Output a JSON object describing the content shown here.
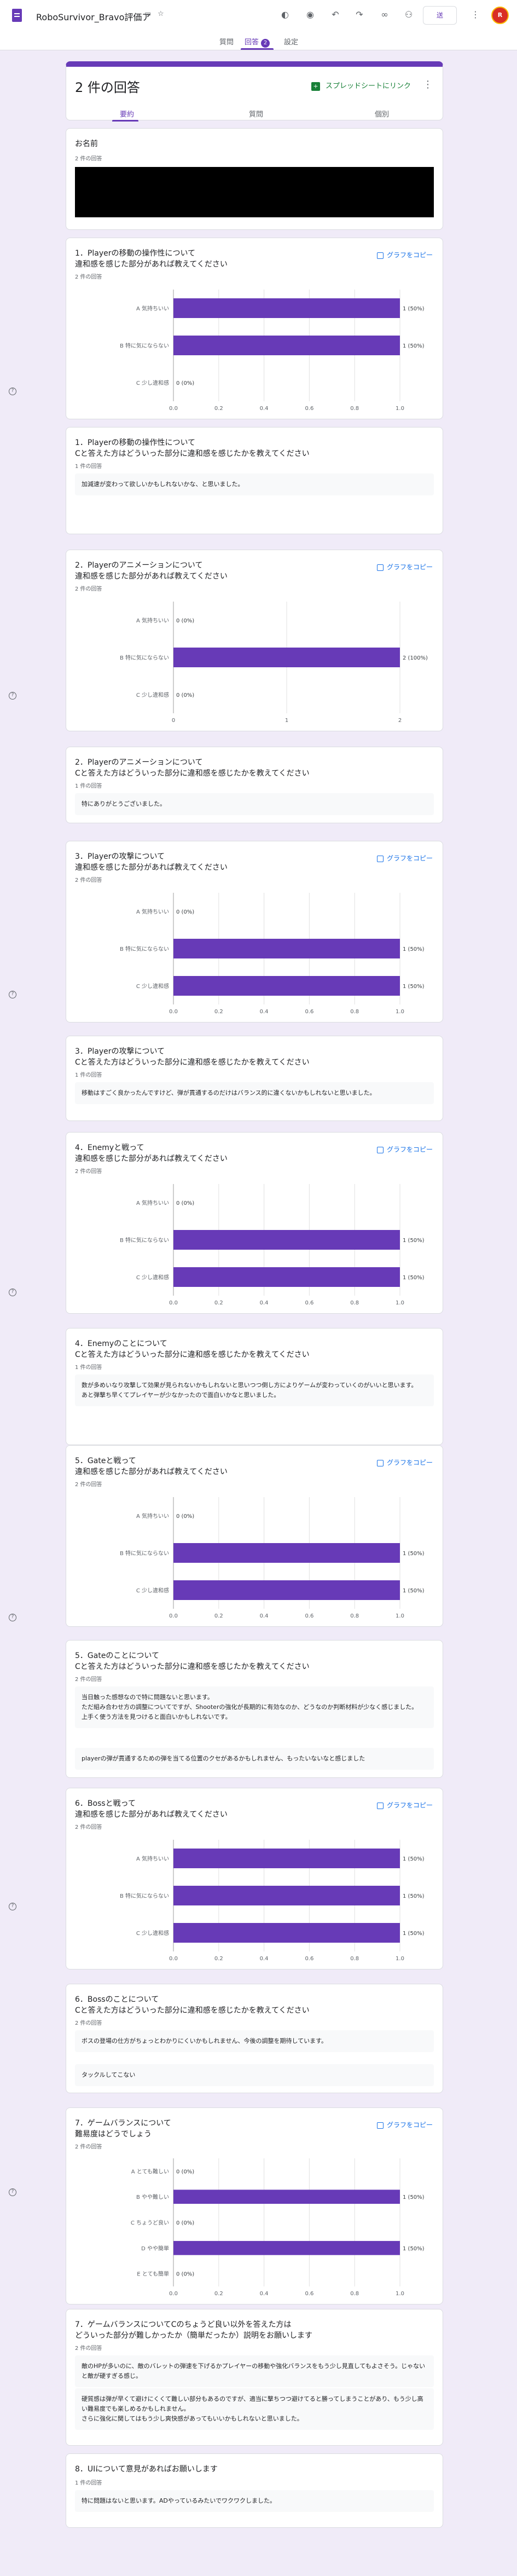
{
  "app": {
    "title": "RoboSurvivor_Bravo評価ア",
    "title_icons": [
      "folder-move-icon",
      "star-icon"
    ],
    "toolbar_icons": [
      "palette-icon",
      "preview-icon",
      "undo-icon",
      "redo-icon",
      "link-icon",
      "add-person-icon"
    ],
    "send_label": "送",
    "more_icon": "kebab-icon",
    "avatar_letter": "R"
  },
  "nav": {
    "tabs": [
      "質問",
      "回答",
      "設定"
    ],
    "active": 1,
    "badge": "2"
  },
  "summary": {
    "count_label": "2 件の回答",
    "sheet_link": "スプレッドシートにリンク",
    "sheet_icon": "spreadsheet-icon",
    "subtabs": [
      "要約",
      "質問",
      "個別"
    ],
    "active_subtab": 0
  },
  "common": {
    "copy_graph": "グラフをコピー",
    "copy_icon": "copy-icon",
    "help_icon": "help-icon"
  },
  "cards": [
    {
      "kind": "redacted",
      "title": "お名前",
      "count": "2 件の回答"
    },
    {
      "kind": "chart",
      "title": "1．Playerの移動の操作性について\n違和感を感じた部分があれば教えてください",
      "count": "2 件の回答",
      "chart": 0
    },
    {
      "kind": "text",
      "title": "1．Playerの移動の操作性について\nCと答えた方はどういった部分に違和感を感じたかを教えてください",
      "count": "1 件の回答",
      "responses": [
        "加減速が変わって欲しいかもしれないかな、と思いました。"
      ]
    },
    {
      "kind": "chart",
      "title": "2．Playerのアニメーションについて\n違和感を感じた部分があれば教えてください",
      "count": "2 件の回答",
      "chart": 1
    },
    {
      "kind": "text",
      "title": "2．Playerのアニメーションについて\nCと答えた方はどういった部分に違和感を感じたかを教えてください",
      "count": "1 件の回答",
      "responses": [
        "特にありがとうございました。"
      ]
    },
    {
      "kind": "chart",
      "title": "3．Playerの攻撃について\n違和感を感じた部分があれば教えてください",
      "count": "2 件の回答",
      "chart": 2
    },
    {
      "kind": "text",
      "title": "3．Playerの攻撃について\nCと答えた方はどういった部分に違和感を感じたかを教えてください",
      "count": "1 件の回答",
      "responses": [
        "移動はすごく良かったんですけど、弾が貫通するのだけはバランス的に違くないかもしれないと思いました。"
      ]
    },
    {
      "kind": "chart",
      "title": "4．Enemyと戦って\n違和感を感じた部分があれば教えてください",
      "count": "2 件の回答",
      "chart": 3
    },
    {
      "kind": "text",
      "title": "4．Enemyのことについて\nCと答えた方はどういった部分に違和感を感じたかを教えてください",
      "count": "1 件の回答",
      "responses": [
        "数が多めいなり攻撃して効果が見られないかもしれないと思いつつ倒し方によりゲームが変わっていくのがいいと思います。\nあと弾撃ち早くてプレイヤーが少なかったので面白いかなと思いました。"
      ]
    },
    {
      "kind": "chart",
      "title": "5．Gateと戦って\n違和感を感じた部分があれば教えてください",
      "count": "2 件の回答",
      "chart": 4
    },
    {
      "kind": "text",
      "title": "5．Gateのことについて\nCと答えた方はどういった部分に違和感を感じたかを教えてください",
      "count": "2 件の回答",
      "responses": [
        "当日触った感想なので特に問題ないと思います。\nただ組み合わせ方の調整についてですが、Shooterの強化が長期的に有効なのか、どうなのか判断材料が少なく感じました。\n上手く使う方法を見つけると面白いかもしれないです。",
        "playerの弾が貫通するための弾を当てる位置のクセがあるかもしれません、もったいないなと感じました"
      ]
    },
    {
      "kind": "chart",
      "title": "6．Bossと戦って\n違和感を感じた部分があれば教えてください",
      "count": "2 件の回答",
      "chart": 5
    },
    {
      "kind": "text",
      "title": "6．Bossのことについて\nCと答えた方はどういった部分に違和感を感じたかを教えてください",
      "count": "2 件の回答",
      "responses": [
        "ボスの登場の仕方がちょっとわかりにくいかもしれません、今後の調整を期待しています。",
        "タックルしてこない"
      ]
    },
    {
      "kind": "chart",
      "title": "7．ゲームバランスについて\n難易度はどうでしょう",
      "count": "2 件の回答",
      "chart": 6
    },
    {
      "kind": "text",
      "title": "7．ゲームバランスについてCのちょうど良い以外を答えた方は\nどういった部分が難しかったか（簡単だったか）説明をお願いします",
      "count": "2 件の回答",
      "responses": [
        "敵のHPが多いのに、敵のバレットの弾速を下げるかプレイヤーの移動や強化バランスをもう少し見直してもよさそう。じゃないと敵が硬すぎる感じ。",
        "硬質感は弾が早くて避けにくくて難しい部分もあるのですが、適当に撃ちつつ避けてると勝ってしまうことがあり、もう少し高い難易度でも楽しめるかもしれません。\nさらに強化に関してはもう少し爽快感があってもいいかもしれないと思いました。"
      ]
    },
    {
      "kind": "text",
      "title": "8．UIについて意見があればお願いします",
      "count": "1 件の回答",
      "responses": [
        "特に問題はないと思います。ADやっているみたいでワクワクしました。"
      ]
    }
  ],
  "chart_data": [
    {
      "type": "bar",
      "orientation": "horizontal",
      "categories": [
        "A 気持ちいい",
        "B 特に気にならない",
        "C 少し違和感"
      ],
      "values": [
        1,
        1,
        0
      ],
      "value_labels": [
        "1 (50%)",
        "1 (50%)",
        "0 (0%)"
      ],
      "xticks": [
        "0.0",
        "0.2",
        "0.4",
        "0.6",
        "0.8",
        "1.0"
      ],
      "xlim": [
        0,
        1
      ],
      "color": "#673ab7"
    },
    {
      "type": "bar",
      "orientation": "horizontal",
      "categories": [
        "A 気持ちいい",
        "B 特に気にならない",
        "C 少し違和感"
      ],
      "values": [
        0,
        2,
        0
      ],
      "value_labels": [
        "0 (0%)",
        "2 (100%)",
        "0 (0%)"
      ],
      "xticks": [
        "0",
        "1",
        "2"
      ],
      "xlim": [
        0,
        2
      ],
      "color": "#673ab7"
    },
    {
      "type": "bar",
      "orientation": "horizontal",
      "categories": [
        "A 気持ちいい",
        "B 特に気にならない",
        "C 少し違和感"
      ],
      "values": [
        0,
        1,
        1
      ],
      "value_labels": [
        "0 (0%)",
        "1 (50%)",
        "1 (50%)"
      ],
      "xticks": [
        "0.0",
        "0.2",
        "0.4",
        "0.6",
        "0.8",
        "1.0"
      ],
      "xlim": [
        0,
        1
      ],
      "color": "#673ab7"
    },
    {
      "type": "bar",
      "orientation": "horizontal",
      "categories": [
        "A 気持ちいい",
        "B 特に気にならない",
        "C 少し違和感"
      ],
      "values": [
        0,
        1,
        1
      ],
      "value_labels": [
        "0 (0%)",
        "1 (50%)",
        "1 (50%)"
      ],
      "xticks": [
        "0.0",
        "0.2",
        "0.4",
        "0.6",
        "0.8",
        "1.0"
      ],
      "xlim": [
        0,
        1
      ],
      "color": "#673ab7"
    },
    {
      "type": "bar",
      "orientation": "horizontal",
      "categories": [
        "A 気持ちいい",
        "B 特に気にならない",
        "C 少し違和感"
      ],
      "values": [
        0,
        1,
        1
      ],
      "value_labels": [
        "0 (0%)",
        "1 (50%)",
        "1 (50%)"
      ],
      "xticks": [
        "0.0",
        "0.2",
        "0.4",
        "0.6",
        "0.8",
        "1.0"
      ],
      "xlim": [
        0,
        1
      ],
      "color": "#673ab7"
    },
    {
      "type": "bar",
      "orientation": "horizontal",
      "categories": [
        "A 気持ちいい",
        "B 特に気にならない",
        "C 少し違和感"
      ],
      "values": [
        1,
        1,
        1
      ],
      "value_labels": [
        "1 (50%)",
        "1 (50%)",
        "1 (50%)"
      ],
      "xticks": [
        "0.0",
        "0.2",
        "0.4",
        "0.6",
        "0.8",
        "1.0"
      ],
      "xlim": [
        0,
        1
      ],
      "color": "#673ab7"
    },
    {
      "type": "bar",
      "orientation": "horizontal",
      "categories": [
        "A とても難しい",
        "B やや難しい",
        "C ちょうど良い",
        "D やや簡単",
        "E とても簡単"
      ],
      "values": [
        0,
        1,
        0,
        1,
        0
      ],
      "value_labels": [
        "0 (0%)",
        "1 (50%)",
        "0 (0%)",
        "1 (50%)",
        "0 (0%)"
      ],
      "xticks": [
        "0.0",
        "0.2",
        "0.4",
        "0.6",
        "0.8",
        "1.0"
      ],
      "xlim": [
        0,
        1
      ],
      "color": "#673ab7"
    }
  ]
}
